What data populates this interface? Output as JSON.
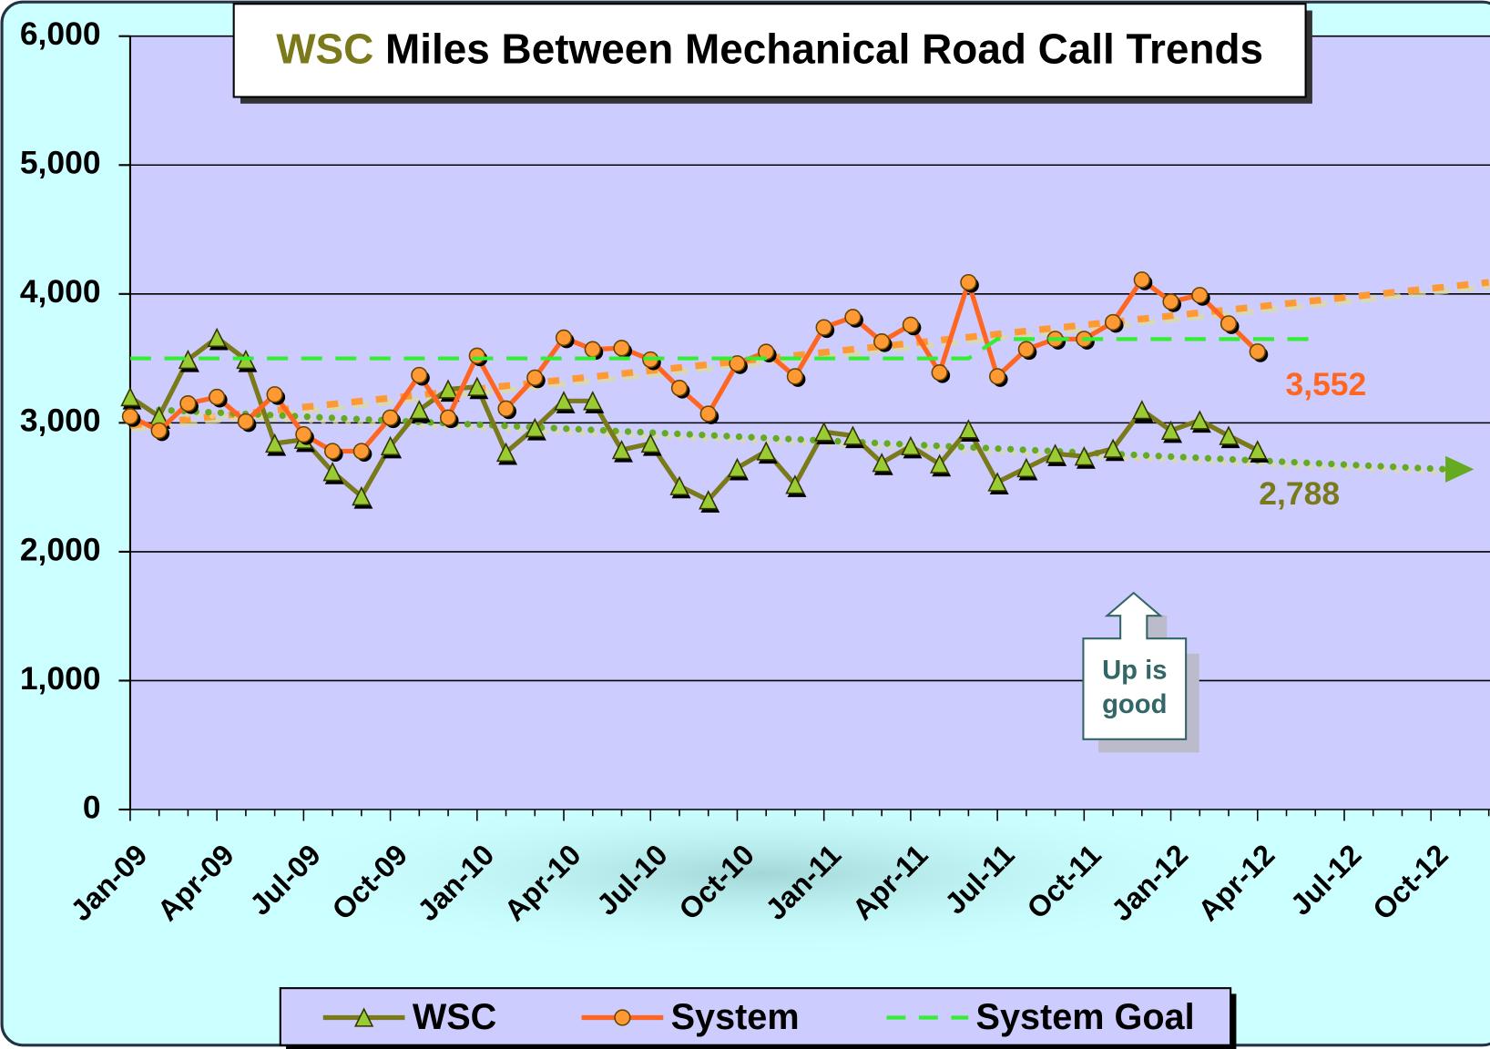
{
  "chart_data": {
    "type": "line",
    "title_prefix": "WSC",
    "title": "Miles Between Mechanical Road Call Trends",
    "categories": [
      "Jan-09",
      null,
      null,
      "Apr-09",
      null,
      null,
      "Jul-09",
      null,
      null,
      "Oct-09",
      null,
      null,
      "Jan-10",
      null,
      null,
      "Apr-10",
      null,
      null,
      "Jul-10",
      null,
      null,
      "Oct-10",
      null,
      null,
      "Jan-11",
      null,
      null,
      "Apr-11",
      null,
      null,
      "Jul-11",
      null,
      null,
      "Oct-11",
      null,
      null,
      "Jan-12",
      null,
      null,
      "Apr-12",
      null,
      null,
      "Jul-12",
      null,
      null,
      "Oct-12",
      null,
      null
    ],
    "series": [
      {
        "name": "WSC",
        "color": "#7a7a1a",
        "marker": "triangle",
        "marker_color": "#99cc33",
        "values": [
          3200,
          3050,
          3490,
          3660,
          3490,
          2840,
          2870,
          2620,
          2430,
          2820,
          3100,
          3260,
          3280,
          2770,
          2960,
          3170,
          3170,
          2790,
          2840,
          2510,
          2400,
          2650,
          2780,
          2520,
          2930,
          2900,
          2690,
          2820,
          2680,
          2950,
          2540,
          2650,
          2760,
          2740,
          2800,
          3100,
          2940,
          3020,
          2900,
          2788,
          null,
          null,
          null,
          null,
          null,
          null,
          null,
          null
        ],
        "value_labels": [
          null,
          null,
          null,
          null,
          null,
          null,
          null,
          null,
          null,
          null,
          null,
          null,
          null,
          null,
          null,
          null,
          null,
          null,
          null,
          null,
          null,
          null,
          null,
          null,
          null,
          null,
          null,
          null,
          null,
          null,
          null,
          null,
          null,
          null,
          null,
          null,
          null,
          null,
          null,
          "2,788",
          null,
          null,
          null,
          null,
          null,
          null,
          null,
          null
        ]
      },
      {
        "name": "System",
        "color": "#ff6622",
        "marker": "circle",
        "marker_color": "#ff9933",
        "values": [
          3050,
          2940,
          3150,
          3200,
          3010,
          3220,
          2910,
          2780,
          2780,
          3040,
          3370,
          3040,
          3520,
          3110,
          3350,
          3660,
          3570,
          3580,
          3490,
          3270,
          3070,
          3460,
          3550,
          3360,
          3740,
          3820,
          3630,
          3760,
          3390,
          4090,
          3360,
          3570,
          3650,
          3650,
          3780,
          4110,
          3940,
          3990,
          3770,
          3552,
          null,
          null,
          null,
          null,
          null,
          null,
          null,
          null
        ],
        "value_labels": [
          null,
          null,
          null,
          null,
          null,
          null,
          null,
          null,
          null,
          null,
          null,
          null,
          null,
          null,
          null,
          null,
          null,
          null,
          null,
          null,
          null,
          null,
          null,
          null,
          null,
          null,
          null,
          null,
          null,
          null,
          null,
          null,
          null,
          null,
          null,
          null,
          null,
          null,
          null,
          "3,552",
          null,
          null,
          null,
          null,
          null,
          null,
          null,
          null
        ]
      },
      {
        "name": "System Goal",
        "color": "#33ee33",
        "dashed": true,
        "values": [
          3500,
          3500,
          3500,
          3500,
          3500,
          3500,
          3500,
          3500,
          3500,
          3500,
          3500,
          3500,
          3500,
          3500,
          3500,
          3500,
          3500,
          3500,
          3500,
          3500,
          3500,
          3500,
          3500,
          3500,
          3500,
          3500,
          3500,
          3500,
          3500,
          3500,
          3650,
          3650,
          3650,
          3650,
          3650,
          3650,
          3650,
          3650,
          3650,
          3650,
          3650,
          3650,
          null,
          null,
          null,
          null,
          null,
          null
        ]
      }
    ],
    "trendlines": [
      {
        "color": "#ff9933",
        "x": [
          0,
          47
        ],
        "values": [
          2980,
          4090
        ]
      },
      {
        "color": "#66aa22",
        "x": [
          1,
          45.5
        ],
        "values": [
          3100,
          2640
        ],
        "arrow": true
      }
    ],
    "ylim": [
      0,
      6000
    ],
    "yticks": [
      0,
      {
        "value": 1000,
        "label": "1,000"
      },
      {
        "value": 2000,
        "label": "2,000"
      },
      {
        "value": 3000,
        "label": "3,000"
      },
      {
        "value": 4000,
        "label": "4,000"
      },
      {
        "value": 5000,
        "label": "5,000"
      },
      {
        "value": 6000,
        "label": "6,000"
      }
    ],
    "grid": true,
    "legend": "bottom",
    "callout": [
      "Up is",
      "good"
    ]
  }
}
